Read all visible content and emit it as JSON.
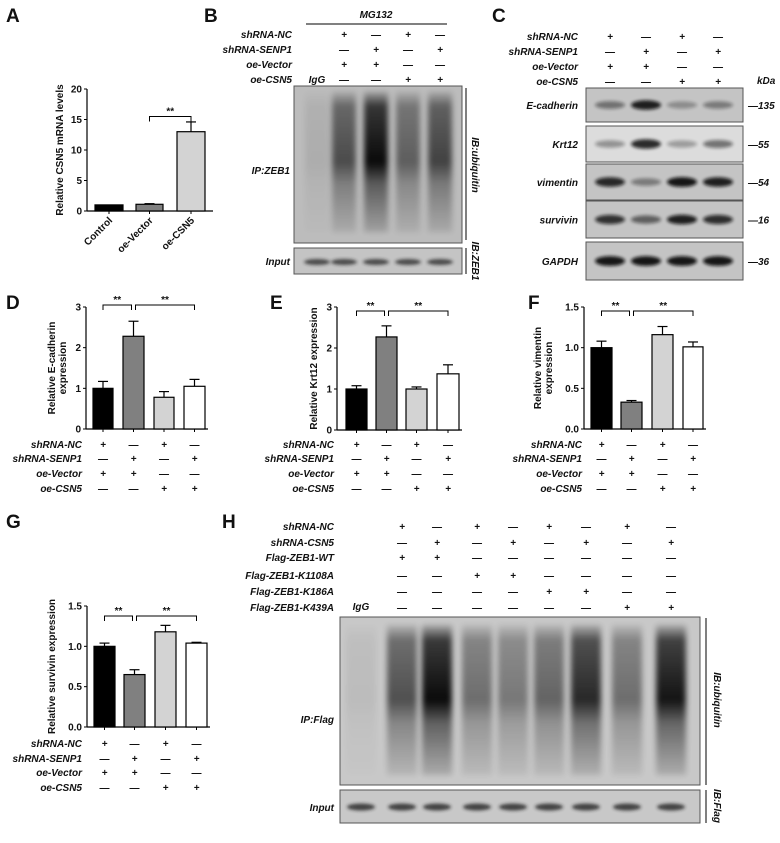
{
  "panels": {
    "A": {
      "letter": "A"
    },
    "B": {
      "letter": "B",
      "treatment": "MG132",
      "conditions": [
        {
          "label": "shRNA-NC",
          "values": [
            "+",
            "—",
            "+",
            "—"
          ]
        },
        {
          "label": "shRNA-SENP1",
          "values": [
            "—",
            "+",
            "—",
            "+"
          ]
        },
        {
          "label": "oe-Vector",
          "values": [
            "+",
            "+",
            "—",
            "—"
          ]
        },
        {
          "label": "oe-CSN5",
          "values": [
            "—",
            "—",
            "+",
            "+"
          ]
        }
      ],
      "igg_label": "IgG",
      "ip_label": "IP:ZEB1",
      "ib_label": "IB:ubiquitin",
      "input_label": "Input",
      "input_ib_label": "IB:ZEB1",
      "smear_intensity": [
        0.08,
        0.6,
        0.95,
        0.5,
        0.65
      ]
    },
    "C": {
      "letter": "C",
      "conditions": [
        {
          "label": "shRNA-NC",
          "values": [
            "+",
            "—",
            "+",
            "—"
          ]
        },
        {
          "label": "shRNA-SENP1",
          "values": [
            "—",
            "+",
            "—",
            "+"
          ]
        },
        {
          "label": "oe-Vector",
          "values": [
            "+",
            "+",
            "—",
            "—"
          ]
        },
        {
          "label": "oe-CSN5",
          "values": [
            "—",
            "—",
            "+",
            "+"
          ]
        }
      ],
      "kda_label": "kDa",
      "blots": [
        {
          "protein": "E-cadherin",
          "marker": "—135",
          "band_intensity": [
            0.45,
            0.9,
            0.3,
            0.4
          ]
        },
        {
          "protein": "Krt12",
          "marker": "—55",
          "band_intensity": [
            0.35,
            0.85,
            0.3,
            0.5
          ]
        },
        {
          "protein": "vimentin",
          "marker": "—54",
          "band_intensity": [
            0.85,
            0.4,
            0.95,
            0.9
          ]
        },
        {
          "protein": "survivin",
          "marker": "—16",
          "band_intensity": [
            0.8,
            0.55,
            0.9,
            0.82
          ]
        },
        {
          "protein": "GAPDH",
          "marker": "—36",
          "band_intensity": [
            0.95,
            0.95,
            0.95,
            0.95
          ]
        }
      ]
    },
    "D": {
      "letter": "D"
    },
    "E": {
      "letter": "E"
    },
    "F": {
      "letter": "F"
    },
    "G": {
      "letter": "G"
    },
    "H": {
      "letter": "H",
      "conditions": [
        {
          "label": "shRNA-NC",
          "values": [
            "+",
            "—",
            "+",
            "—",
            "+",
            "—",
            "+",
            "—"
          ]
        },
        {
          "label": "shRNA-CSN5",
          "values": [
            "—",
            "+",
            "—",
            "+",
            "—",
            "+",
            "—",
            "+"
          ]
        },
        {
          "label": "Flag-ZEB1-WT",
          "values": [
            "+",
            "+",
            "—",
            "—",
            "—",
            "—",
            "—",
            "—"
          ]
        },
        {
          "label": "Flag-ZEB1-K1108A",
          "values": [
            "—",
            "—",
            "+",
            "+",
            "—",
            "—",
            "—",
            "—"
          ]
        },
        {
          "label": "Flag-ZEB1-K186A",
          "values": [
            "—",
            "—",
            "—",
            "—",
            "+",
            "+",
            "—",
            "—"
          ]
        },
        {
          "label": "Flag-ZEB1-K439A",
          "values": [
            "—",
            "—",
            "—",
            "—",
            "—",
            "—",
            "+",
            "+"
          ]
        }
      ],
      "igg_label": "IgG",
      "ip_label": "IP:Flag",
      "ib_label": "IB:ubiquitin",
      "input_label": "Input",
      "input_ib_label": "IB:Flag",
      "smear_intensity": [
        0.06,
        0.6,
        0.95,
        0.45,
        0.4,
        0.5,
        0.8,
        0.45,
        0.9
      ]
    }
  },
  "bar_colors": [
    "#000000",
    "#808080",
    "#d3d3d3",
    "#ffffff"
  ],
  "chart_data": [
    {
      "panel": "A",
      "type": "bar",
      "categories": [
        "Control",
        "oe-Vector",
        "oe-CSN5"
      ],
      "values": [
        1.0,
        1.1,
        13.0
      ],
      "errors": [
        0.0,
        0.1,
        1.6
      ],
      "ylabel": "Relative CSN5 mRNA levels",
      "ylim": [
        0,
        20
      ],
      "yticks": [
        "0",
        "5",
        "10",
        "15",
        "20"
      ],
      "significance": [
        {
          "from": 1,
          "to": 2,
          "label": "**"
        }
      ]
    },
    {
      "panel": "D",
      "type": "bar",
      "values": [
        1.0,
        2.28,
        0.78,
        1.05
      ],
      "errors": [
        0.17,
        0.37,
        0.14,
        0.17
      ],
      "ylabel": [
        "Relative E-cadherin",
        "expression"
      ],
      "ylim": [
        0,
        3
      ],
      "yticks": [
        "0",
        "1",
        "2",
        "3"
      ],
      "significance": [
        {
          "from": 0,
          "to": 1,
          "label": "**"
        },
        {
          "from": 1,
          "to": 3,
          "label": "**"
        }
      ],
      "conditions": [
        {
          "label": "shRNA-NC",
          "values": [
            "+",
            "—",
            "+",
            "—"
          ]
        },
        {
          "label": "shRNA-SENP1",
          "values": [
            "—",
            "+",
            "—",
            "+"
          ]
        },
        {
          "label": "oe-Vector",
          "values": [
            "+",
            "+",
            "—",
            "—"
          ]
        },
        {
          "label": "oe-CSN5",
          "values": [
            "—",
            "—",
            "+",
            "+"
          ]
        }
      ]
    },
    {
      "panel": "E",
      "type": "bar",
      "values": [
        1.0,
        2.27,
        1.0,
        1.37
      ],
      "errors": [
        0.08,
        0.27,
        0.05,
        0.22
      ],
      "ylabel": [
        "Relative Krt12 expression"
      ],
      "ylim": [
        0,
        3
      ],
      "yticks": [
        "0",
        "1",
        "2",
        "3"
      ],
      "significance": [
        {
          "from": 0,
          "to": 1,
          "label": "**"
        },
        {
          "from": 1,
          "to": 3,
          "label": "**"
        }
      ],
      "conditions": [
        {
          "label": "shRNA-NC",
          "values": [
            "+",
            "—",
            "+",
            "—"
          ]
        },
        {
          "label": "shRNA-SENP1",
          "values": [
            "—",
            "+",
            "—",
            "+"
          ]
        },
        {
          "label": "oe-Vector",
          "values": [
            "+",
            "+",
            "—",
            "—"
          ]
        },
        {
          "label": "oe-CSN5",
          "values": [
            "—",
            "—",
            "+",
            "+"
          ]
        }
      ]
    },
    {
      "panel": "F",
      "type": "bar",
      "values": [
        1.0,
        0.33,
        1.16,
        1.01
      ],
      "errors": [
        0.08,
        0.02,
        0.1,
        0.06
      ],
      "ylabel": [
        "Relative vimentin",
        "expression"
      ],
      "ylim": [
        0,
        1.5
      ],
      "yticks": [
        "0.0",
        "0.5",
        "1.0",
        "1.5"
      ],
      "significance": [
        {
          "from": 0,
          "to": 1,
          "label": "**"
        },
        {
          "from": 1,
          "to": 3,
          "label": "**"
        }
      ],
      "conditions": [
        {
          "label": "shRNA-NC",
          "values": [
            "+",
            "—",
            "+",
            "—"
          ]
        },
        {
          "label": "shRNA-SENP1",
          "values": [
            "—",
            "+",
            "—",
            "+"
          ]
        },
        {
          "label": "oe-Vector",
          "values": [
            "+",
            "+",
            "—",
            "—"
          ]
        },
        {
          "label": "oe-CSN5",
          "values": [
            "—",
            "—",
            "+",
            "+"
          ]
        }
      ]
    },
    {
      "panel": "G",
      "type": "bar",
      "values": [
        1.0,
        0.65,
        1.18,
        1.04
      ],
      "errors": [
        0.04,
        0.06,
        0.08,
        0.01
      ],
      "ylabel": [
        "Relative survivin expression"
      ],
      "ylim": [
        0,
        1.5
      ],
      "yticks": [
        "0.0",
        "0.5",
        "1.0",
        "1.5"
      ],
      "significance": [
        {
          "from": 0,
          "to": 1,
          "label": "**"
        },
        {
          "from": 1,
          "to": 3,
          "label": "**"
        }
      ],
      "conditions": [
        {
          "label": "shRNA-NC",
          "values": [
            "+",
            "—",
            "+",
            "—"
          ]
        },
        {
          "label": "shRNA-SENP1",
          "values": [
            "—",
            "+",
            "—",
            "+"
          ]
        },
        {
          "label": "oe-Vector",
          "values": [
            "+",
            "+",
            "—",
            "—"
          ]
        },
        {
          "label": "oe-CSN5",
          "values": [
            "—",
            "—",
            "+",
            "+"
          ]
        }
      ]
    }
  ]
}
